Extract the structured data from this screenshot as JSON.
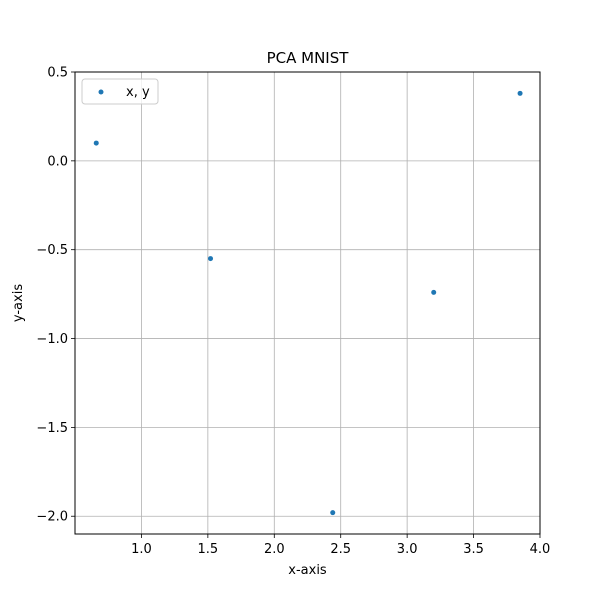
{
  "chart_data": {
    "type": "scatter",
    "title": "PCA MNIST",
    "xlabel": "x-axis",
    "ylabel": "y-axis",
    "xlim": [
      0.5,
      4.0
    ],
    "ylim": [
      -2.1,
      0.5
    ],
    "xticks": [
      1.0,
      1.5,
      2.0,
      2.5,
      3.0,
      3.5,
      4.0
    ],
    "xtick_labels": [
      "1.0",
      "1.5",
      "2.0",
      "2.5",
      "3.0",
      "3.5",
      "4.0"
    ],
    "yticks": [
      0.5,
      0.0,
      -0.5,
      -1.0,
      -1.5,
      -2.0
    ],
    "ytick_labels": [
      "0.5",
      "0.0",
      "−0.5",
      "−1.0",
      "−1.5",
      "−2.0"
    ],
    "grid": true,
    "legend_placement": "top-left",
    "series": [
      {
        "name": "x, y",
        "color": "#1f77b4",
        "points": [
          {
            "x": 0.66,
            "y": 0.1
          },
          {
            "x": 1.52,
            "y": -0.55
          },
          {
            "x": 2.44,
            "y": -1.98
          },
          {
            "x": 3.2,
            "y": -0.74
          },
          {
            "x": 3.85,
            "y": 0.38
          }
        ]
      }
    ]
  }
}
